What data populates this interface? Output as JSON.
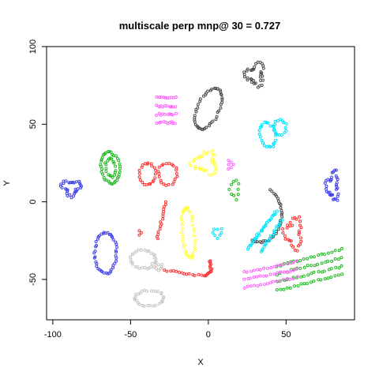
{
  "chart_data": {
    "type": "scatter",
    "title": "multiscale perp mnp@ 30 = 0.727",
    "xlabel": "X",
    "ylabel": "Y",
    "xlim": [
      -104,
      94
    ],
    "ylim": [
      -76,
      100
    ],
    "xticks": [
      -100,
      -50,
      0,
      50
    ],
    "yticks": [
      -50,
      0,
      50,
      100
    ],
    "grid": false,
    "clusters": [
      {
        "color": "#4d4d4d",
        "shape": "ellipse",
        "cx": 0,
        "cy": 60,
        "rx": 7,
        "ry": 14,
        "rot": -25,
        "n": 46
      },
      {
        "color": "#4d4d4d",
        "shape": "blob",
        "cx": 30,
        "cy": 82,
        "rx": 6,
        "ry": 7,
        "n": 34
      },
      {
        "color": "#4d4d4d",
        "shape": "arc",
        "cx": 33,
        "cy": -8,
        "rx": 14,
        "ry": 18,
        "start": -110,
        "end": 60,
        "n": 34
      },
      {
        "color": "#ff66ff",
        "shape": "stripes",
        "cx": -27,
        "cy": 59,
        "w": 12,
        "h": 16,
        "k": 4,
        "n": 40
      },
      {
        "color": "#00e5ff",
        "shape": "ellipse",
        "cx": 38,
        "cy": 43,
        "rx": 5,
        "ry": 8,
        "rot": 15,
        "n": 24
      },
      {
        "color": "#00e5ff",
        "shape": "ellipse",
        "cx": 46,
        "cy": 48,
        "rx": 4,
        "ry": 5,
        "rot": 0,
        "n": 16
      },
      {
        "color": "#00e5ff",
        "shape": "line",
        "x1": 25,
        "y1": -30,
        "x2": 44,
        "y2": -6,
        "n": 30
      },
      {
        "color": "#00e5ff",
        "shape": "line",
        "x1": 34,
        "y1": -32,
        "x2": 47,
        "y2": -12,
        "n": 20
      },
      {
        "color": "#00e5ff",
        "shape": "blob",
        "cx": 6,
        "cy": -20,
        "rx": 3,
        "ry": 3,
        "n": 8
      },
      {
        "color": "#22bb22",
        "shape": "ellipse",
        "cx": -63,
        "cy": 22,
        "rx": 6,
        "ry": 10,
        "rot": 10,
        "n": 36
      },
      {
        "color": "#22bb22",
        "shape": "ellipse",
        "cx": -63,
        "cy": 22,
        "rx": 3,
        "ry": 6,
        "rot": 10,
        "n": 18
      },
      {
        "color": "#22bb22",
        "shape": "stripes",
        "cx": 65,
        "cy": -44,
        "w": 42,
        "h": 16,
        "k": 4,
        "slant": 0.25,
        "n": 80
      },
      {
        "color": "#22bb22",
        "shape": "blob",
        "cx": 17,
        "cy": 8,
        "rx": 3,
        "ry": 6,
        "n": 10
      },
      {
        "color": "#ff3333",
        "shape": "ellipse",
        "cx": -39,
        "cy": 18,
        "rx": 5,
        "ry": 7,
        "rot": 0,
        "n": 22
      },
      {
        "color": "#ff3333",
        "shape": "ellipse",
        "cx": -26,
        "cy": 18,
        "rx": 6,
        "ry": 7,
        "rot": 0,
        "n": 22
      },
      {
        "color": "#ff3333",
        "shape": "line",
        "x1": -33,
        "y1": -24,
        "x2": -27,
        "y2": 0,
        "n": 16
      },
      {
        "color": "#ff3333",
        "shape": "curve",
        "pts": [
          [
            -28,
            -44
          ],
          [
            -15,
            -46
          ],
          [
            -2,
            -48
          ],
          [
            2,
            -44
          ],
          [
            1,
            -38
          ]
        ],
        "n": 30
      },
      {
        "color": "#ff3333",
        "shape": "blob",
        "cx": 55,
        "cy": -20,
        "rx": 6,
        "ry": 10,
        "n": 30
      },
      {
        "color": "#ff3333",
        "shape": "blob",
        "cx": -44,
        "cy": -20,
        "rx": 1,
        "ry": 2,
        "n": 3
      },
      {
        "color": "#ffff33",
        "shape": "ellipse",
        "cx": -13,
        "cy": -20,
        "rx": 4,
        "ry": 16,
        "rot": 5,
        "n": 40
      },
      {
        "color": "#ffff33",
        "shape": "blob",
        "cx": -2,
        "cy": 25,
        "rx": 8,
        "ry": 7,
        "n": 34
      },
      {
        "color": "#ff66ff",
        "shape": "stripes",
        "cx": 40,
        "cy": -47,
        "w": 34,
        "h": 10,
        "k": 3,
        "slant": 0.2,
        "n": 50
      },
      {
        "color": "#ff66ff",
        "shape": "blob",
        "cx": 14,
        "cy": 24,
        "rx": 2,
        "ry": 3,
        "n": 6
      },
      {
        "color": "#4444ee",
        "shape": "ellipse",
        "cx": -66,
        "cy": -33,
        "rx": 7,
        "ry": 13,
        "rot": 0,
        "n": 44
      },
      {
        "color": "#4444ee",
        "shape": "blob",
        "cx": -88,
        "cy": 9,
        "rx": 6,
        "ry": 5,
        "n": 32
      },
      {
        "color": "#4444ee",
        "shape": "blob",
        "cx": 80,
        "cy": 10,
        "rx": 4,
        "ry": 9,
        "n": 34
      },
      {
        "color": "#c8c8c8",
        "shape": "ellipse",
        "cx": -42,
        "cy": -37,
        "rx": 8,
        "ry": 6,
        "rot": 0,
        "n": 30
      },
      {
        "color": "#c8c8c8",
        "shape": "ellipse",
        "cx": -38,
        "cy": -62,
        "rx": 9,
        "ry": 5,
        "rot": 0,
        "n": 30
      },
      {
        "color": "#c8c8c8",
        "shape": "blob",
        "cx": -32,
        "cy": -42,
        "rx": 3,
        "ry": 2,
        "n": 8
      }
    ]
  }
}
